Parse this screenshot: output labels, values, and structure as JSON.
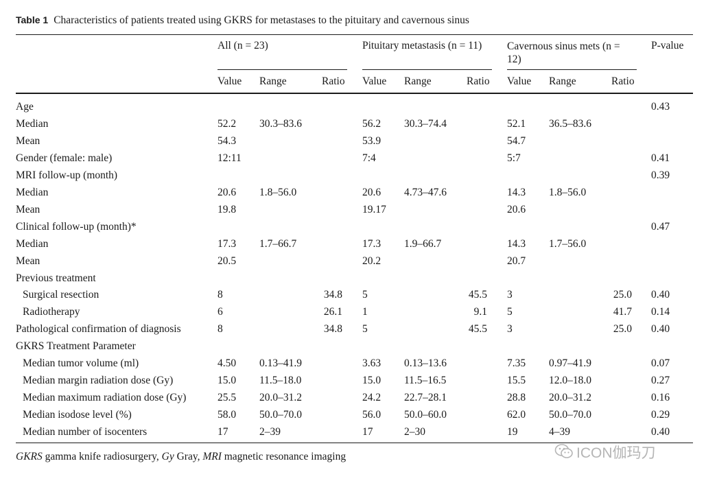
{
  "caption": {
    "label": "Table 1",
    "text": "Characteristics of patients treated using GKRS for metastases to the pituitary and cavernous sinus"
  },
  "header": {
    "group_all": "All (n = 23)",
    "group_pit": "Pituitary metastasis (n = 11)",
    "group_cav": "Cavernous sinus mets (n = 12)",
    "pvalue": "P-value",
    "sub": [
      "Value",
      "Range",
      "Ratio",
      "Value",
      "Range",
      "Ratio",
      "Value",
      "Range",
      "Ratio"
    ]
  },
  "rows": [
    {
      "label": "Age",
      "indent": false,
      "cells": [
        "",
        "",
        "",
        "",
        "",
        "",
        "",
        "",
        "",
        "0.43"
      ]
    },
    {
      "label": "Median",
      "indent": false,
      "cells": [
        "52.2",
        "30.3–83.6",
        "",
        "56.2",
        "30.3–74.4",
        "",
        "52.1",
        "36.5–83.6",
        "",
        ""
      ]
    },
    {
      "label": "Mean",
      "indent": false,
      "cells": [
        "54.3",
        "",
        "",
        "53.9",
        "",
        "",
        "54.7",
        "",
        "",
        ""
      ]
    },
    {
      "label": "Gender (female: male)",
      "indent": false,
      "cells": [
        "12:11",
        "",
        "",
        "7:4",
        "",
        "",
        "5:7",
        "",
        "",
        "0.41"
      ]
    },
    {
      "label": "MRI follow-up (month)",
      "indent": false,
      "cells": [
        "",
        "",
        "",
        "",
        "",
        "",
        "",
        "",
        "",
        "0.39"
      ]
    },
    {
      "label": "Median",
      "indent": false,
      "cells": [
        "20.6",
        "1.8–56.0",
        "",
        "20.6",
        "4.73–47.6",
        "",
        "14.3",
        "1.8–56.0",
        "",
        ""
      ]
    },
    {
      "label": "Mean",
      "indent": false,
      "cells": [
        "19.8",
        "",
        "",
        "19.17",
        "",
        "",
        "20.6",
        "",
        "",
        ""
      ]
    },
    {
      "label": "Clinical follow-up (month)*",
      "indent": false,
      "cells": [
        "",
        "",
        "",
        "",
        "",
        "",
        "",
        "",
        "",
        "0.47"
      ]
    },
    {
      "label": "Median",
      "indent": false,
      "cells": [
        "17.3",
        "1.7–66.7",
        "",
        "17.3",
        "1.9–66.7",
        "",
        "14.3",
        "1.7–56.0",
        "",
        ""
      ]
    },
    {
      "label": "Mean",
      "indent": false,
      "cells": [
        "20.5",
        "",
        "",
        "20.2",
        "",
        "",
        "20.7",
        "",
        "",
        ""
      ]
    },
    {
      "label": "Previous treatment",
      "indent": false,
      "cells": [
        "",
        "",
        "",
        "",
        "",
        "",
        "",
        "",
        "",
        ""
      ]
    },
    {
      "label": "Surgical resection",
      "indent": true,
      "cells": [
        "8",
        "",
        "34.8",
        "5",
        "",
        "45.5",
        "3",
        "",
        "25.0",
        "0.40"
      ]
    },
    {
      "label": "Radiotherapy",
      "indent": true,
      "cells": [
        "6",
        "",
        "26.1",
        "1",
        "",
        "9.1",
        "5",
        "",
        "41.7",
        "0.14"
      ]
    },
    {
      "label": "Pathological confirmation of diagnosis",
      "indent": false,
      "cells": [
        "8",
        "",
        "34.8",
        "5",
        "",
        "45.5",
        "3",
        "",
        "25.0",
        "0.40"
      ]
    },
    {
      "label": "GKRS Treatment Parameter",
      "indent": false,
      "cells": [
        "",
        "",
        "",
        "",
        "",
        "",
        "",
        "",
        "",
        ""
      ]
    },
    {
      "label": "Median tumor volume (ml)",
      "indent": true,
      "cells": [
        "4.50",
        "0.13–41.9",
        "",
        "3.63",
        "0.13–13.6",
        "",
        "7.35",
        "0.97–41.9",
        "",
        "0.07"
      ]
    },
    {
      "label": "Median margin radiation dose (Gy)",
      "indent": true,
      "cells": [
        "15.0",
        "11.5–18.0",
        "",
        "15.0",
        "11.5–16.5",
        "",
        "15.5",
        "12.0–18.0",
        "",
        "0.27"
      ]
    },
    {
      "label": "Median maximum radiation dose (Gy)",
      "indent": true,
      "cells": [
        "25.5",
        "20.0–31.2",
        "",
        "24.2",
        "22.7–28.1",
        "",
        "28.8",
        "20.0–31.2",
        "",
        "0.16"
      ]
    },
    {
      "label": "Median isodose level (%)",
      "indent": true,
      "cells": [
        "58.0",
        "50.0–70.0",
        "",
        "56.0",
        "50.0–60.0",
        "",
        "62.0",
        "50.0–70.0",
        "",
        "0.29"
      ]
    },
    {
      "label": "Median number of isocenters",
      "indent": true,
      "cells": [
        "17",
        "2–39",
        "",
        "17",
        "2–30",
        "",
        "19",
        "4–39",
        "",
        "0.40"
      ]
    }
  ],
  "footnote": {
    "abbr1": "GKRS",
    "def1": " gamma knife radiosurgery, ",
    "abbr2": "Gy",
    "def2": " Gray, ",
    "abbr3": "MRI",
    "def3": " magnetic resonance imaging"
  },
  "watermark": {
    "icon": "wechat-icon",
    "text": "ICON伽玛刀"
  }
}
